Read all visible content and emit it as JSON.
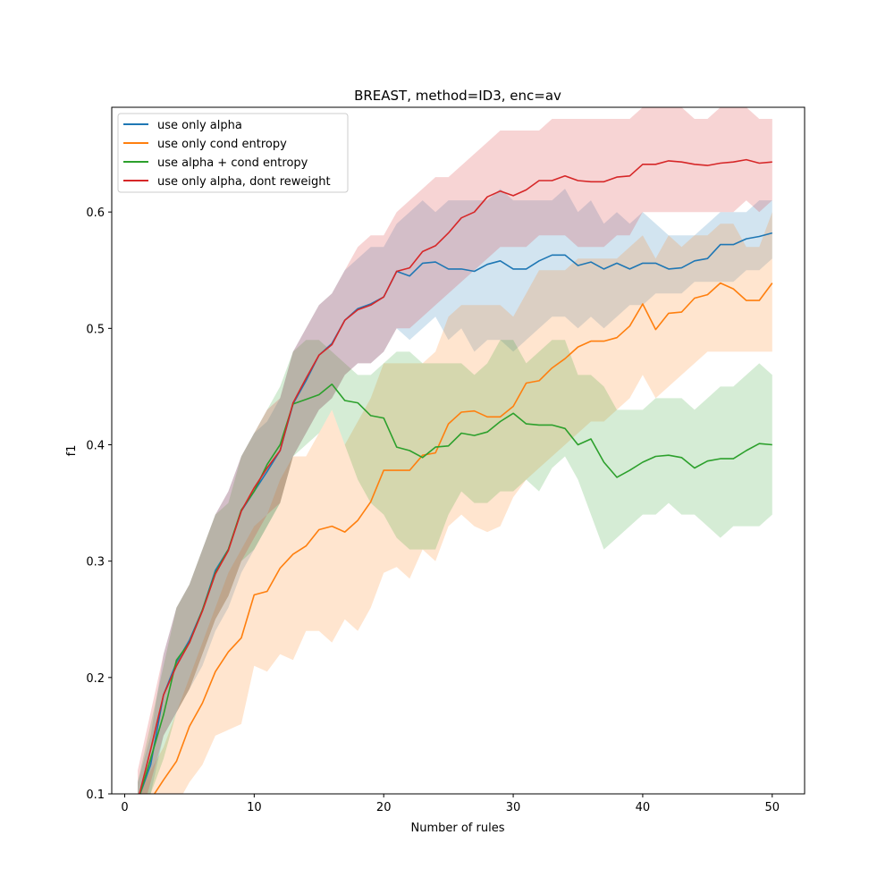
{
  "chart_data": {
    "type": "line",
    "title": "BREAST, method=ID3, enc=av",
    "xlabel": "Number of rules",
    "ylabel": "f1",
    "xlim": [
      -1,
      52.5
    ],
    "ylim": [
      0.1,
      0.69
    ],
    "xticks": [
      0,
      10,
      20,
      30,
      40,
      50
    ],
    "yticks": [
      0.1,
      0.2,
      0.3,
      0.4,
      0.5,
      0.6
    ],
    "grid": false,
    "legend_position": "upper-left",
    "band": "shaded region around each line (spread)",
    "series": [
      {
        "name": "use only alpha",
        "color": "#1f77b4",
        "x": [
          1,
          2,
          3,
          4,
          5,
          6,
          7,
          8,
          9,
          10,
          11,
          12,
          13,
          14,
          15,
          16,
          17,
          18,
          19,
          20,
          21,
          22,
          23,
          24,
          25,
          26,
          27,
          28,
          29,
          30,
          31,
          32,
          33,
          34,
          35,
          36,
          37,
          38,
          39,
          40,
          41,
          42,
          43,
          44,
          45,
          46,
          47,
          48,
          49,
          50
        ],
        "y": [
          0.094,
          0.125,
          0.185,
          0.213,
          0.232,
          0.258,
          0.292,
          0.31,
          0.343,
          0.36,
          0.377,
          0.395,
          0.435,
          0.455,
          0.477,
          0.487,
          0.507,
          0.517,
          0.521,
          0.527,
          0.549,
          0.545,
          0.556,
          0.557,
          0.551,
          0.551,
          0.549,
          0.555,
          0.558,
          0.551,
          0.551,
          0.558,
          0.563,
          0.563,
          0.554,
          0.557,
          0.551,
          0.556,
          0.551,
          0.556,
          0.556,
          0.551,
          0.552,
          0.558,
          0.56,
          0.572,
          0.572,
          0.577,
          0.579,
          0.582
        ],
        "lower": [
          0.08,
          0.1,
          0.15,
          0.17,
          0.19,
          0.21,
          0.24,
          0.26,
          0.29,
          0.31,
          0.33,
          0.35,
          0.39,
          0.41,
          0.43,
          0.44,
          0.46,
          0.47,
          0.47,
          0.48,
          0.5,
          0.49,
          0.5,
          0.51,
          0.49,
          0.5,
          0.48,
          0.49,
          0.49,
          0.48,
          0.49,
          0.5,
          0.51,
          0.51,
          0.5,
          0.51,
          0.5,
          0.51,
          0.52,
          0.52,
          0.53,
          0.53,
          0.53,
          0.54,
          0.54,
          0.54,
          0.54,
          0.55,
          0.55,
          0.56
        ],
        "upper": [
          0.11,
          0.15,
          0.22,
          0.26,
          0.28,
          0.31,
          0.34,
          0.36,
          0.39,
          0.41,
          0.42,
          0.44,
          0.48,
          0.5,
          0.52,
          0.53,
          0.55,
          0.56,
          0.57,
          0.57,
          0.59,
          0.6,
          0.61,
          0.6,
          0.61,
          0.61,
          0.61,
          0.61,
          0.62,
          0.61,
          0.61,
          0.61,
          0.61,
          0.62,
          0.6,
          0.61,
          0.59,
          0.6,
          0.59,
          0.6,
          0.59,
          0.58,
          0.58,
          0.58,
          0.59,
          0.6,
          0.6,
          0.6,
          0.61,
          0.61
        ]
      },
      {
        "name": "use only cond entropy",
        "color": "#ff7f0e",
        "x": [
          1,
          2,
          3,
          4,
          5,
          6,
          7,
          8,
          9,
          10,
          11,
          12,
          13,
          14,
          15,
          16,
          17,
          18,
          19,
          20,
          21,
          22,
          23,
          24,
          25,
          26,
          27,
          28,
          29,
          30,
          31,
          32,
          33,
          34,
          35,
          36,
          37,
          38,
          39,
          40,
          41,
          42,
          43,
          44,
          45,
          46,
          47,
          48,
          49,
          50
        ],
        "y": [
          0.08,
          0.095,
          0.112,
          0.128,
          0.158,
          0.178,
          0.205,
          0.222,
          0.234,
          0.271,
          0.274,
          0.294,
          0.306,
          0.313,
          0.327,
          0.33,
          0.325,
          0.335,
          0.351,
          0.378,
          0.378,
          0.378,
          0.391,
          0.393,
          0.418,
          0.428,
          0.429,
          0.424,
          0.424,
          0.433,
          0.453,
          0.455,
          0.466,
          0.474,
          0.484,
          0.489,
          0.489,
          0.492,
          0.502,
          0.521,
          0.499,
          0.513,
          0.514,
          0.526,
          0.529,
          0.539,
          0.534,
          0.524,
          0.524,
          0.539
        ],
        "lower": [
          0.06,
          0.07,
          0.08,
          0.09,
          0.11,
          0.125,
          0.15,
          0.155,
          0.16,
          0.21,
          0.205,
          0.22,
          0.215,
          0.24,
          0.24,
          0.23,
          0.25,
          0.24,
          0.26,
          0.29,
          0.295,
          0.285,
          0.31,
          0.3,
          0.33,
          0.34,
          0.33,
          0.325,
          0.33,
          0.355,
          0.37,
          0.38,
          0.39,
          0.4,
          0.41,
          0.42,
          0.42,
          0.43,
          0.44,
          0.46,
          0.44,
          0.45,
          0.46,
          0.47,
          0.48,
          0.48,
          0.48,
          0.48,
          0.48,
          0.48
        ],
        "upper": [
          0.1,
          0.12,
          0.14,
          0.17,
          0.2,
          0.23,
          0.26,
          0.29,
          0.31,
          0.33,
          0.34,
          0.37,
          0.39,
          0.39,
          0.41,
          0.43,
          0.4,
          0.42,
          0.44,
          0.47,
          0.47,
          0.47,
          0.47,
          0.48,
          0.51,
          0.52,
          0.52,
          0.52,
          0.52,
          0.51,
          0.53,
          0.55,
          0.55,
          0.55,
          0.56,
          0.56,
          0.56,
          0.56,
          0.57,
          0.58,
          0.56,
          0.58,
          0.57,
          0.58,
          0.58,
          0.59,
          0.59,
          0.57,
          0.57,
          0.6
        ]
      },
      {
        "name": "use alpha + cond entropy",
        "color": "#2ca02c",
        "x": [
          1,
          2,
          3,
          4,
          5,
          6,
          7,
          8,
          9,
          10,
          11,
          12,
          13,
          14,
          15,
          16,
          17,
          18,
          19,
          20,
          21,
          22,
          23,
          24,
          25,
          26,
          27,
          28,
          29,
          30,
          31,
          32,
          33,
          34,
          35,
          36,
          37,
          38,
          39,
          40,
          41,
          42,
          43,
          44,
          45,
          46,
          47,
          48,
          49,
          50
        ],
        "y": [
          0.093,
          0.13,
          0.168,
          0.215,
          0.23,
          0.258,
          0.29,
          0.31,
          0.344,
          0.36,
          0.383,
          0.4,
          0.435,
          0.439,
          0.443,
          0.452,
          0.438,
          0.436,
          0.425,
          0.423,
          0.398,
          0.395,
          0.389,
          0.398,
          0.399,
          0.41,
          0.408,
          0.411,
          0.42,
          0.427,
          0.418,
          0.417,
          0.417,
          0.414,
          0.4,
          0.405,
          0.385,
          0.372,
          0.378,
          0.385,
          0.39,
          0.391,
          0.389,
          0.38,
          0.386,
          0.388,
          0.388,
          0.395,
          0.401,
          0.4
        ],
        "lower": [
          0.08,
          0.1,
          0.13,
          0.17,
          0.19,
          0.22,
          0.25,
          0.27,
          0.3,
          0.31,
          0.33,
          0.35,
          0.39,
          0.4,
          0.41,
          0.43,
          0.4,
          0.37,
          0.35,
          0.34,
          0.32,
          0.31,
          0.31,
          0.31,
          0.34,
          0.36,
          0.35,
          0.35,
          0.36,
          0.36,
          0.37,
          0.36,
          0.38,
          0.39,
          0.37,
          0.34,
          0.31,
          0.32,
          0.33,
          0.34,
          0.34,
          0.35,
          0.34,
          0.34,
          0.33,
          0.32,
          0.33,
          0.33,
          0.33,
          0.34
        ],
        "upper": [
          0.11,
          0.16,
          0.21,
          0.26,
          0.28,
          0.31,
          0.34,
          0.35,
          0.39,
          0.41,
          0.43,
          0.45,
          0.48,
          0.49,
          0.49,
          0.48,
          0.47,
          0.46,
          0.46,
          0.47,
          0.48,
          0.48,
          0.47,
          0.47,
          0.47,
          0.47,
          0.46,
          0.47,
          0.49,
          0.49,
          0.47,
          0.48,
          0.49,
          0.49,
          0.46,
          0.46,
          0.45,
          0.43,
          0.43,
          0.43,
          0.44,
          0.44,
          0.44,
          0.43,
          0.44,
          0.45,
          0.45,
          0.46,
          0.47,
          0.46
        ]
      },
      {
        "name": "use only alpha, dont reweight",
        "color": "#d62728",
        "x": [
          1,
          2,
          3,
          4,
          5,
          6,
          7,
          8,
          9,
          10,
          11,
          12,
          13,
          14,
          15,
          16,
          17,
          18,
          19,
          20,
          21,
          22,
          23,
          24,
          25,
          26,
          27,
          28,
          29,
          30,
          31,
          32,
          33,
          34,
          35,
          36,
          37,
          38,
          39,
          40,
          41,
          42,
          43,
          44,
          45,
          46,
          47,
          48,
          49,
          50
        ],
        "y": [
          0.094,
          0.138,
          0.185,
          0.21,
          0.23,
          0.257,
          0.289,
          0.309,
          0.343,
          0.363,
          0.38,
          0.395,
          0.436,
          0.457,
          0.477,
          0.486,
          0.507,
          0.516,
          0.52,
          0.527,
          0.549,
          0.552,
          0.566,
          0.571,
          0.582,
          0.595,
          0.6,
          0.613,
          0.618,
          0.614,
          0.619,
          0.627,
          0.627,
          0.631,
          0.627,
          0.626,
          0.626,
          0.63,
          0.631,
          0.641,
          0.641,
          0.644,
          0.643,
          0.641,
          0.64,
          0.642,
          0.643,
          0.645,
          0.642,
          0.643
        ],
        "lower": [
          0.07,
          0.11,
          0.15,
          0.17,
          0.19,
          0.22,
          0.25,
          0.27,
          0.3,
          0.32,
          0.34,
          0.35,
          0.39,
          0.41,
          0.43,
          0.44,
          0.46,
          0.47,
          0.47,
          0.48,
          0.5,
          0.5,
          0.51,
          0.52,
          0.53,
          0.54,
          0.55,
          0.56,
          0.57,
          0.57,
          0.57,
          0.58,
          0.58,
          0.58,
          0.57,
          0.57,
          0.57,
          0.58,
          0.58,
          0.6,
          0.6,
          0.6,
          0.6,
          0.6,
          0.6,
          0.6,
          0.6,
          0.61,
          0.6,
          0.61
        ],
        "upper": [
          0.12,
          0.17,
          0.22,
          0.26,
          0.28,
          0.31,
          0.34,
          0.36,
          0.39,
          0.41,
          0.43,
          0.44,
          0.48,
          0.5,
          0.52,
          0.53,
          0.55,
          0.57,
          0.58,
          0.58,
          0.6,
          0.61,
          0.62,
          0.63,
          0.63,
          0.64,
          0.65,
          0.66,
          0.67,
          0.67,
          0.67,
          0.67,
          0.68,
          0.68,
          0.68,
          0.68,
          0.68,
          0.68,
          0.68,
          0.69,
          0.69,
          0.69,
          0.69,
          0.68,
          0.68,
          0.69,
          0.69,
          0.69,
          0.68,
          0.68
        ]
      }
    ]
  }
}
